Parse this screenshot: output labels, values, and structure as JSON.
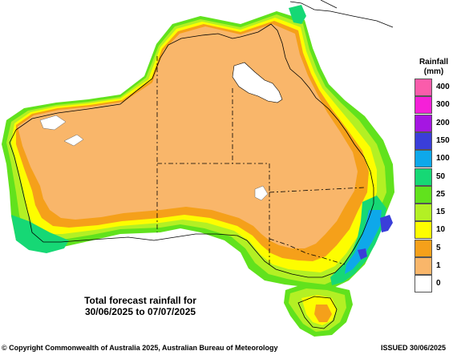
{
  "map": {
    "region": "Australia",
    "forecast_title_line1": "Total forecast rainfall for",
    "forecast_title_line2": "30/06/2025 to 07/07/2025",
    "colors": {
      "sea": "#ffffff",
      "rain_1": "#f9b66a",
      "rain_5": "#f5a01a",
      "rain_10": "#fdfd00",
      "rain_15": "#b3f024",
      "rain_25": "#61e21d",
      "rain_50": "#16d875",
      "rain_100": "#0ea8ea",
      "rain_150": "#3a3ed9",
      "coast": "#000000",
      "border": "#000000"
    }
  },
  "legend": {
    "title_line1": "Rainfall",
    "title_line2": "(mm)",
    "entries": [
      {
        "label": "400",
        "color": "#fa5cab"
      },
      {
        "label": "300",
        "color": "#f520d8"
      },
      {
        "label": "200",
        "color": "#a516e2"
      },
      {
        "label": "150",
        "color": "#3a3ed9"
      },
      {
        "label": "100",
        "color": "#0ea8ea"
      },
      {
        "label": "50",
        "color": "#16d875"
      },
      {
        "label": "25",
        "color": "#61e21d"
      },
      {
        "label": "15",
        "color": "#b3f024"
      },
      {
        "label": "10",
        "color": "#fdfd00"
      },
      {
        "label": "5",
        "color": "#f5a01a"
      },
      {
        "label": "1",
        "color": "#f9b66a"
      },
      {
        "label": "0",
        "color": "#ffffff"
      }
    ]
  },
  "footer": {
    "copyright": "© Copyright Commonwealth of Australia 2025, Australian Bureau of Meteorology",
    "issued": "ISSUED 30/06/2025"
  }
}
